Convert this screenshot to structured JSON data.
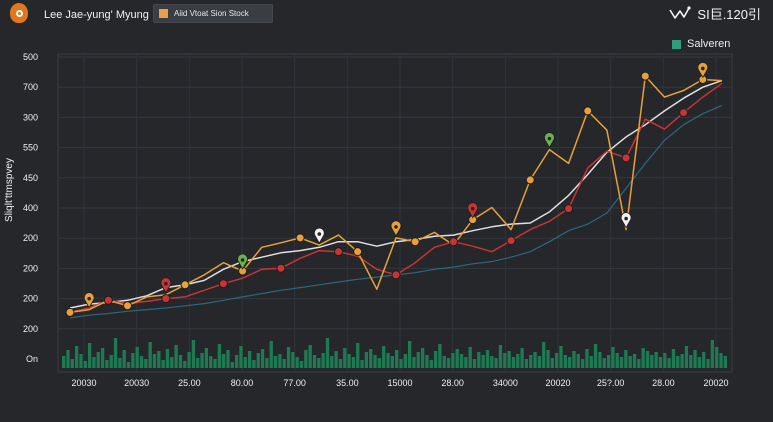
{
  "header": {
    "user_name": "Lee Jae-yung' Myung",
    "add_button_label": "Aiid Vtoat Sion Stock",
    "brand_text": "SI巨.120引"
  },
  "chart_data": {
    "type": "line",
    "legend": {
      "entries": [
        "Salveren"
      ],
      "placement": "top-right"
    },
    "ylabel": "Sliqlt’ttmspvey",
    "y_tick_labels": [
      "500",
      "700",
      "300",
      "550",
      "450",
      "400",
      "200",
      "200",
      "200",
      "200",
      "On"
    ],
    "x_tick_labels": [
      "20030",
      "20030",
      "25.00",
      "80.00",
      "77.00",
      "35.00",
      "15000",
      "28.00",
      "34000",
      "20020",
      "25?.00",
      "28.00",
      "20020"
    ],
    "ylim": [
      0,
      500
    ],
    "grid": true,
    "series": [
      {
        "name": "Salveren",
        "color": "#e8a13a",
        "values": [
          50,
          55,
          72,
          62,
          78,
          82,
          100,
          118,
          140,
          125,
          168,
          176,
          185,
          172,
          190,
          160,
          92,
          185,
          178,
          195,
          172,
          218,
          240,
          200,
          290,
          345,
          320,
          415,
          380,
          200,
          478,
          440,
          452,
          472,
          470
        ]
      },
      {
        "color": "#e0e0e0",
        "values": [
          58,
          65,
          68,
          72,
          80,
          95,
          100,
          108,
          128,
          142,
          150,
          158,
          162,
          168,
          178,
          178,
          170,
          178,
          182,
          188,
          190,
          198,
          205,
          210,
          212,
          232,
          262,
          300,
          340,
          368,
          390,
          415,
          438,
          458,
          470
        ]
      },
      {
        "color": "#c93434",
        "values": [
          50,
          58,
          72,
          66,
          70,
          75,
          78,
          90,
          102,
          112,
          128,
          130,
          148,
          162,
          160,
          152,
          128,
          118,
          140,
          168,
          178,
          170,
          160,
          180,
          200,
          215,
          238,
          312,
          342,
          330,
          400,
          382,
          412,
          440,
          465
        ]
      },
      {
        "color": "#2d6f86",
        "values": [
          40,
          45,
          48,
          52,
          55,
          58,
          62,
          66,
          72,
          78,
          84,
          90,
          95,
          100,
          105,
          110,
          114,
          118,
          122,
          128,
          132,
          138,
          142,
          150,
          160,
          178,
          198,
          210,
          230,
          275,
          320,
          362,
          390,
          410,
          425
        ]
      }
    ],
    "volume": [
      12,
      18,
      9,
      22,
      14,
      7,
      25,
      11,
      16,
      20,
      8,
      13,
      30,
      10,
      18,
      6,
      15,
      21,
      12,
      9,
      26,
      14,
      17,
      8,
      19,
      11,
      23,
      13,
      7,
      16,
      28,
      10,
      15,
      20,
      12,
      9,
      24,
      14,
      18,
      6,
      13,
      22,
      11,
      17,
      8,
      15,
      19,
      10,
      27,
      12,
      14,
      9,
      21,
      16,
      11,
      7,
      18,
      23,
      13,
      10,
      15,
      30,
      12,
      17,
      9,
      20,
      14,
      11,
      25,
      8,
      16,
      19,
      13,
      10,
      22,
      15,
      12,
      18,
      9,
      14,
      27,
      11,
      16,
      20,
      13,
      8,
      17,
      24,
      12,
      10,
      15,
      19,
      14,
      11,
      21,
      9,
      16,
      13,
      18,
      12,
      10,
      23,
      15,
      17,
      11,
      14,
      20,
      9,
      13,
      16,
      12,
      26,
      18,
      10,
      15,
      22,
      13,
      11,
      17,
      14,
      9,
      19,
      12,
      24,
      16,
      10,
      13,
      21,
      15,
      11,
      18,
      12,
      14,
      9,
      20,
      17,
      13,
      16,
      11,
      15,
      10,
      19,
      12,
      14,
      22,
      13,
      18,
      11,
      16,
      9,
      28,
      21,
      15,
      12
    ]
  },
  "colors": {
    "background": "#25272b",
    "grid": "#35383d",
    "volume": "#1e7a52"
  }
}
